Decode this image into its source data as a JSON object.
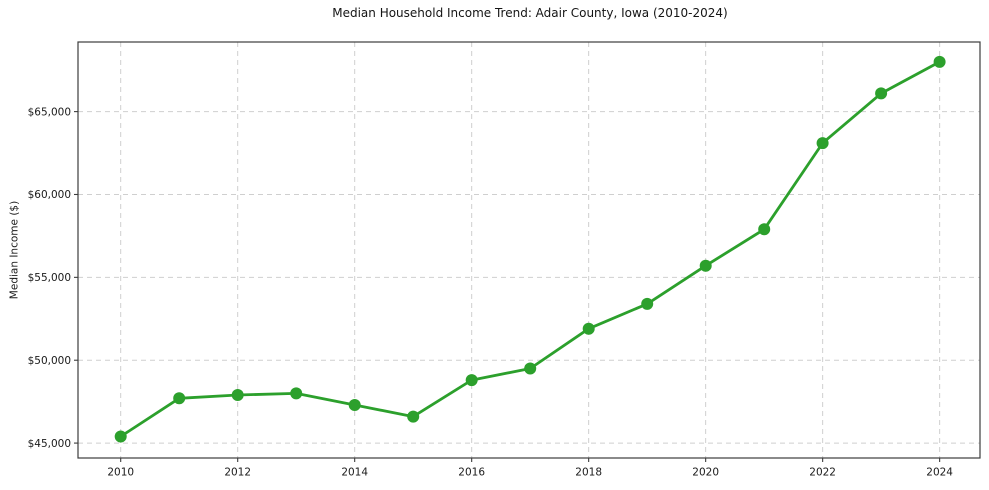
{
  "chart_data": {
    "type": "line",
    "title": "Median Household Income Trend: Adair County, Iowa (2010-2024)",
    "xlabel": "",
    "ylabel": "Median Income ($)",
    "x": [
      2010,
      2011,
      2012,
      2013,
      2014,
      2015,
      2016,
      2017,
      2018,
      2019,
      2020,
      2021,
      2022,
      2023,
      2024
    ],
    "values": [
      45400,
      47700,
      47900,
      48000,
      47300,
      46600,
      48800,
      49500,
      51900,
      53400,
      55700,
      57900,
      63100,
      66100,
      68000
    ],
    "x_ticks": [
      2010,
      2012,
      2014,
      2016,
      2018,
      2020,
      2022,
      2024
    ],
    "x_tick_labels": [
      "2010",
      "2012",
      "2014",
      "2016",
      "2018",
      "2020",
      "2022",
      "2024"
    ],
    "y_ticks": [
      45000,
      50000,
      55000,
      60000,
      65000
    ],
    "y_tick_labels": [
      "$45,000",
      "$50,000",
      "$55,000",
      "$60,000",
      "$65,000"
    ],
    "xlim": [
      2009.27,
      2024.69
    ],
    "ylim": [
      44100,
      69200
    ],
    "grid": true,
    "grid_style": "dashed",
    "legend": "none",
    "marker": "circle",
    "line_color": "#2ca02c",
    "marker_color": "#2ca02c",
    "grid_color": "#cfcfcf",
    "background_color": "#ffffff"
  }
}
